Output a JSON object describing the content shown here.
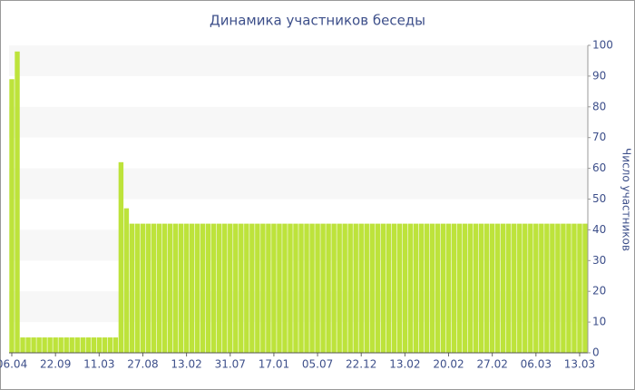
{
  "chart_data": {
    "type": "bar",
    "title": "Динамика участников беседы",
    "y_label": "Число участников",
    "categories": [
      "06.04",
      null,
      null,
      null,
      null,
      null,
      null,
      null,
      "22.09",
      null,
      null,
      null,
      null,
      null,
      null,
      null,
      "11.03",
      null,
      null,
      null,
      null,
      null,
      null,
      null,
      "27.08",
      null,
      null,
      null,
      null,
      null,
      null,
      null,
      "13.02",
      null,
      null,
      null,
      null,
      null,
      null,
      null,
      "31.07",
      null,
      null,
      null,
      null,
      null,
      null,
      null,
      "17.01",
      null,
      null,
      null,
      null,
      null,
      null,
      null,
      "05.07",
      null,
      null,
      null,
      null,
      null,
      null,
      null,
      "22.12",
      null,
      null,
      null,
      null,
      null,
      null,
      null,
      "13.02",
      null,
      null,
      null,
      null,
      null,
      null,
      null,
      "20.02",
      null,
      null,
      null,
      null,
      null,
      null,
      null,
      "27.02",
      null,
      null,
      null,
      null,
      null,
      null,
      null,
      "06.03",
      null,
      null,
      null,
      null,
      null,
      null,
      null,
      "13.03",
      null
    ],
    "values": [
      89,
      98,
      5,
      5,
      5,
      5,
      5,
      5,
      5,
      5,
      5,
      5,
      5,
      5,
      5,
      5,
      5,
      5,
      5,
      5,
      62,
      47,
      42,
      42,
      42,
      42,
      42,
      42,
      42,
      42,
      42,
      42,
      42,
      42,
      42,
      42,
      42,
      42,
      42,
      42,
      42,
      42,
      42,
      42,
      42,
      42,
      42,
      42,
      42,
      42,
      42,
      42,
      42,
      42,
      42,
      42,
      42,
      42,
      42,
      42,
      42,
      42,
      42,
      42,
      42,
      42,
      42,
      42,
      42,
      42,
      42,
      42,
      42,
      42,
      42,
      42,
      42,
      42,
      42,
      42,
      42,
      42,
      42,
      42,
      42,
      42,
      42,
      42,
      42,
      42,
      42,
      42,
      42,
      42,
      42,
      42,
      42,
      42,
      42,
      42,
      42,
      42,
      42,
      42,
      42,
      42
    ],
    "color": "#bde33b",
    "band_color": "#f7f7f7",
    "ylim": [
      0,
      100
    ],
    "yticks": [
      0,
      10,
      20,
      30,
      40,
      50,
      60,
      70,
      80,
      90,
      100
    ],
    "grid": true
  }
}
